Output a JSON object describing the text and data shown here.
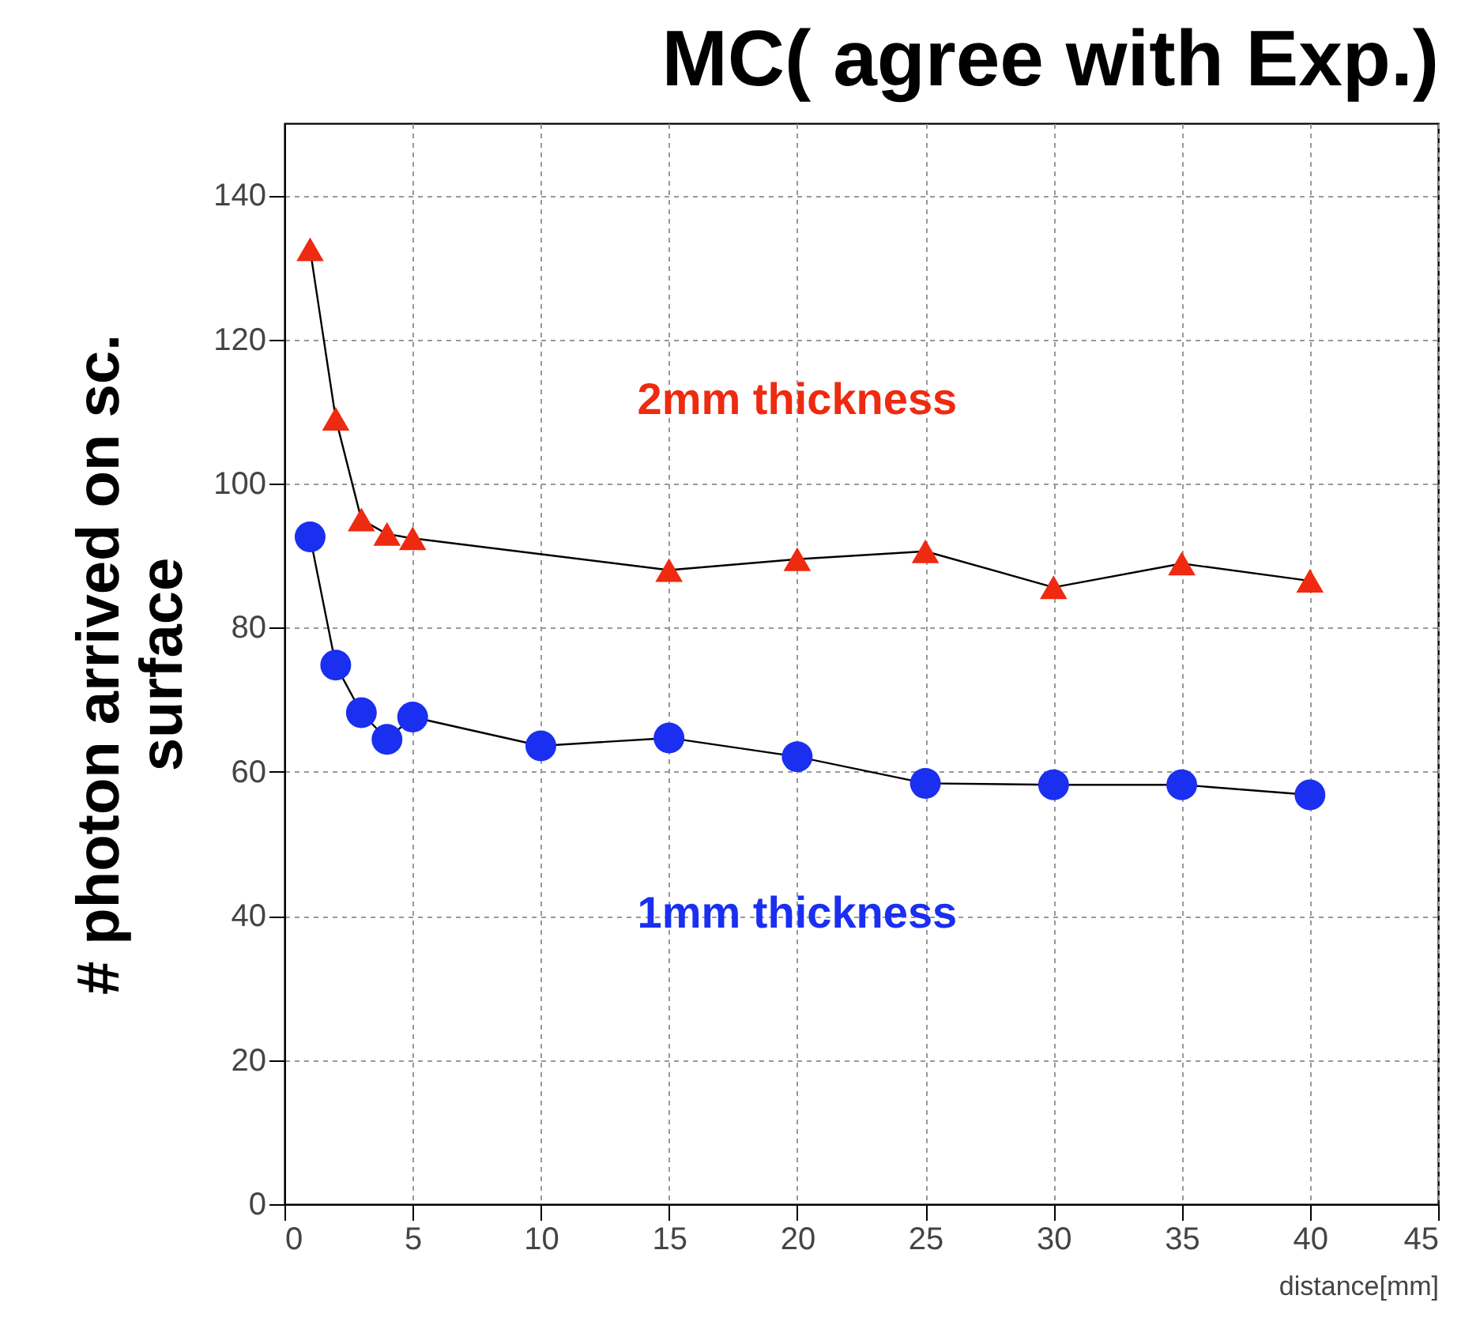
{
  "chart_data": {
    "type": "line",
    "title": "MC( agree with Exp.)",
    "xlabel": "distance[mm]",
    "ylabel": "# photon arrived on sc.\nsurface",
    "xlim": [
      0,
      45
    ],
    "xticks": [
      0,
      5,
      10,
      15,
      20,
      25,
      30,
      35,
      40,
      45
    ],
    "ylim": [
      0,
      150
    ],
    "yticks": [
      0,
      20,
      40,
      60,
      80,
      100,
      120,
      140
    ],
    "grid": true,
    "line_style": "solid",
    "series": [
      {
        "name": "2mm thickness",
        "color": "#ee2a10",
        "marker": "triangle",
        "x": [
          1,
          2,
          3,
          4,
          5,
          15,
          20,
          25,
          30,
          35,
          40
        ],
        "values": [
          132.5,
          109,
          95,
          93,
          92.4,
          88,
          89.5,
          90.6,
          85.6,
          88.9,
          86.5
        ]
      },
      {
        "name": "1mm thickness",
        "color": "#1a2ff0",
        "marker": "circle",
        "x": [
          1,
          2,
          3,
          4,
          5,
          10,
          15,
          20,
          25,
          30,
          35,
          40
        ],
        "values": [
          92.6,
          74.8,
          68.2,
          64.5,
          67.6,
          63.6,
          64.7,
          62.1,
          58.4,
          58.2,
          58.2,
          56.8
        ]
      }
    ]
  }
}
